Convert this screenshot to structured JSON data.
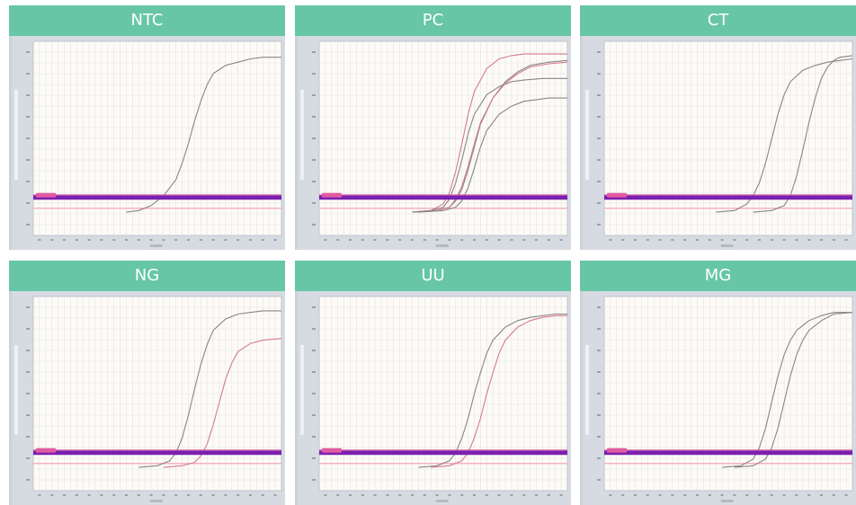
{
  "colors": {
    "header_bg": "#67c6a6",
    "header_text": "#ffffff",
    "frame_bg": "#ccd2da",
    "plot_bg": "#fefbf7",
    "grid": "#dfe3ea",
    "threshold": "#7a1fb0",
    "curve": "#8a8486",
    "curve_red": "#d57c8c"
  },
  "chart_data": [
    {
      "type": "line",
      "title": "NTC",
      "xlim": [
        0,
        40
      ],
      "ylim": [
        0,
        1
      ],
      "threshold": 0.09,
      "series": [
        {
          "color_key": "curve",
          "x": [
            15,
            17,
            19,
            21,
            23,
            24,
            25,
            26,
            27,
            28,
            29,
            31,
            33,
            35,
            37,
            40
          ],
          "y": [
            0.0,
            0.01,
            0.04,
            0.1,
            0.2,
            0.3,
            0.42,
            0.56,
            0.68,
            0.78,
            0.85,
            0.9,
            0.92,
            0.94,
            0.95,
            0.95
          ]
        }
      ]
    },
    {
      "type": "line",
      "title": "PC",
      "xlim": [
        0,
        40
      ],
      "ylim": [
        0,
        1
      ],
      "threshold": 0.09,
      "series": [
        {
          "color_key": "curve_red",
          "x": [
            15,
            18,
            20,
            21,
            22,
            23,
            24,
            25,
            27,
            29,
            31,
            33,
            36,
            40
          ],
          "y": [
            0.0,
            0.01,
            0.05,
            0.12,
            0.25,
            0.42,
            0.6,
            0.74,
            0.88,
            0.94,
            0.96,
            0.97,
            0.97,
            0.97
          ]
        },
        {
          "color_key": "curve",
          "x": [
            15,
            18,
            20,
            21,
            22,
            23,
            24,
            25,
            27,
            29,
            31,
            33,
            36,
            40
          ],
          "y": [
            0.0,
            0.01,
            0.03,
            0.08,
            0.18,
            0.32,
            0.48,
            0.6,
            0.72,
            0.77,
            0.8,
            0.81,
            0.82,
            0.82
          ]
        },
        {
          "color_key": "curve",
          "x": [
            15,
            19,
            21,
            22,
            23,
            24,
            25,
            26,
            28,
            30,
            32,
            34,
            37,
            40
          ],
          "y": [
            0.0,
            0.01,
            0.03,
            0.07,
            0.14,
            0.26,
            0.4,
            0.54,
            0.7,
            0.8,
            0.86,
            0.9,
            0.92,
            0.93
          ]
        },
        {
          "color_key": "curve_red",
          "x": [
            16,
            19,
            21,
            22,
            23,
            24,
            25,
            26,
            28,
            30,
            32,
            34,
            37,
            40
          ],
          "y": [
            0.0,
            0.01,
            0.03,
            0.08,
            0.16,
            0.28,
            0.42,
            0.55,
            0.7,
            0.79,
            0.85,
            0.89,
            0.91,
            0.92
          ]
        },
        {
          "color_key": "curve",
          "x": [
            16,
            20,
            22,
            23,
            24,
            25,
            26,
            27,
            29,
            31,
            33,
            35,
            37,
            40
          ],
          "y": [
            0.0,
            0.01,
            0.03,
            0.07,
            0.15,
            0.27,
            0.4,
            0.5,
            0.6,
            0.65,
            0.68,
            0.69,
            0.7,
            0.7
          ]
        }
      ]
    },
    {
      "type": "line",
      "title": "CT",
      "xlim": [
        0,
        40
      ],
      "ylim": [
        0,
        1
      ],
      "threshold": 0.09,
      "series": [
        {
          "color_key": "curve",
          "x": [
            18,
            21,
            23,
            24,
            25,
            26,
            27,
            28,
            29,
            30,
            32,
            34,
            36,
            38,
            40
          ],
          "y": [
            0.0,
            0.01,
            0.05,
            0.1,
            0.18,
            0.3,
            0.45,
            0.6,
            0.72,
            0.8,
            0.87,
            0.9,
            0.92,
            0.93,
            0.94
          ]
        },
        {
          "color_key": "curve",
          "x": [
            24,
            27,
            29,
            30,
            31,
            32,
            33,
            34,
            35,
            36,
            37,
            38,
            40
          ],
          "y": [
            0.0,
            0.01,
            0.04,
            0.1,
            0.22,
            0.38,
            0.55,
            0.7,
            0.82,
            0.89,
            0.93,
            0.95,
            0.96
          ]
        }
      ]
    },
    {
      "type": "line",
      "title": "NG",
      "xlim": [
        0,
        40
      ],
      "ylim": [
        0,
        1
      ],
      "threshold": 0.09,
      "series": [
        {
          "color_key": "curve",
          "x": [
            17,
            20,
            22,
            23,
            24,
            25,
            26,
            27,
            28,
            29,
            31,
            33,
            35,
            37,
            40
          ],
          "y": [
            0.0,
            0.01,
            0.04,
            0.09,
            0.18,
            0.32,
            0.48,
            0.63,
            0.75,
            0.84,
            0.91,
            0.94,
            0.95,
            0.96,
            0.96
          ]
        },
        {
          "color_key": "curve_red",
          "x": [
            21,
            24,
            26,
            27,
            28,
            29,
            30,
            31,
            32,
            33,
            35,
            37,
            40
          ],
          "y": [
            0.0,
            0.01,
            0.03,
            0.07,
            0.14,
            0.26,
            0.4,
            0.54,
            0.64,
            0.71,
            0.76,
            0.78,
            0.79
          ]
        }
      ]
    },
    {
      "type": "line",
      "title": "UU",
      "xlim": [
        0,
        40
      ],
      "ylim": [
        0,
        1
      ],
      "threshold": 0.09,
      "series": [
        {
          "color_key": "curve",
          "x": [
            16,
            19,
            21,
            22,
            23,
            24,
            25,
            26,
            27,
            28,
            30,
            32,
            34,
            36,
            38,
            40
          ],
          "y": [
            0.0,
            0.01,
            0.04,
            0.09,
            0.18,
            0.3,
            0.45,
            0.58,
            0.7,
            0.78,
            0.86,
            0.9,
            0.92,
            0.93,
            0.94,
            0.94
          ]
        },
        {
          "color_key": "curve_red",
          "x": [
            18,
            21,
            23,
            24,
            25,
            26,
            27,
            28,
            29,
            30,
            32,
            34,
            36,
            38,
            40
          ],
          "y": [
            0.0,
            0.01,
            0.04,
            0.09,
            0.18,
            0.3,
            0.45,
            0.58,
            0.7,
            0.78,
            0.86,
            0.9,
            0.92,
            0.93,
            0.93
          ]
        }
      ]
    },
    {
      "type": "line",
      "title": "MG",
      "xlim": [
        0,
        40
      ],
      "ylim": [
        0,
        1
      ],
      "threshold": 0.09,
      "series": [
        {
          "color_key": "curve",
          "x": [
            19,
            22,
            24,
            25,
            26,
            27,
            28,
            29,
            30,
            31,
            33,
            35,
            37,
            40
          ],
          "y": [
            0.0,
            0.01,
            0.05,
            0.12,
            0.24,
            0.4,
            0.56,
            0.69,
            0.78,
            0.84,
            0.9,
            0.93,
            0.95,
            0.95
          ]
        },
        {
          "color_key": "curve",
          "x": [
            21,
            24,
            26,
            27,
            28,
            29,
            30,
            31,
            32,
            33,
            35,
            37,
            40
          ],
          "y": [
            0.0,
            0.01,
            0.05,
            0.12,
            0.24,
            0.4,
            0.56,
            0.69,
            0.78,
            0.84,
            0.9,
            0.94,
            0.95
          ]
        }
      ]
    }
  ]
}
